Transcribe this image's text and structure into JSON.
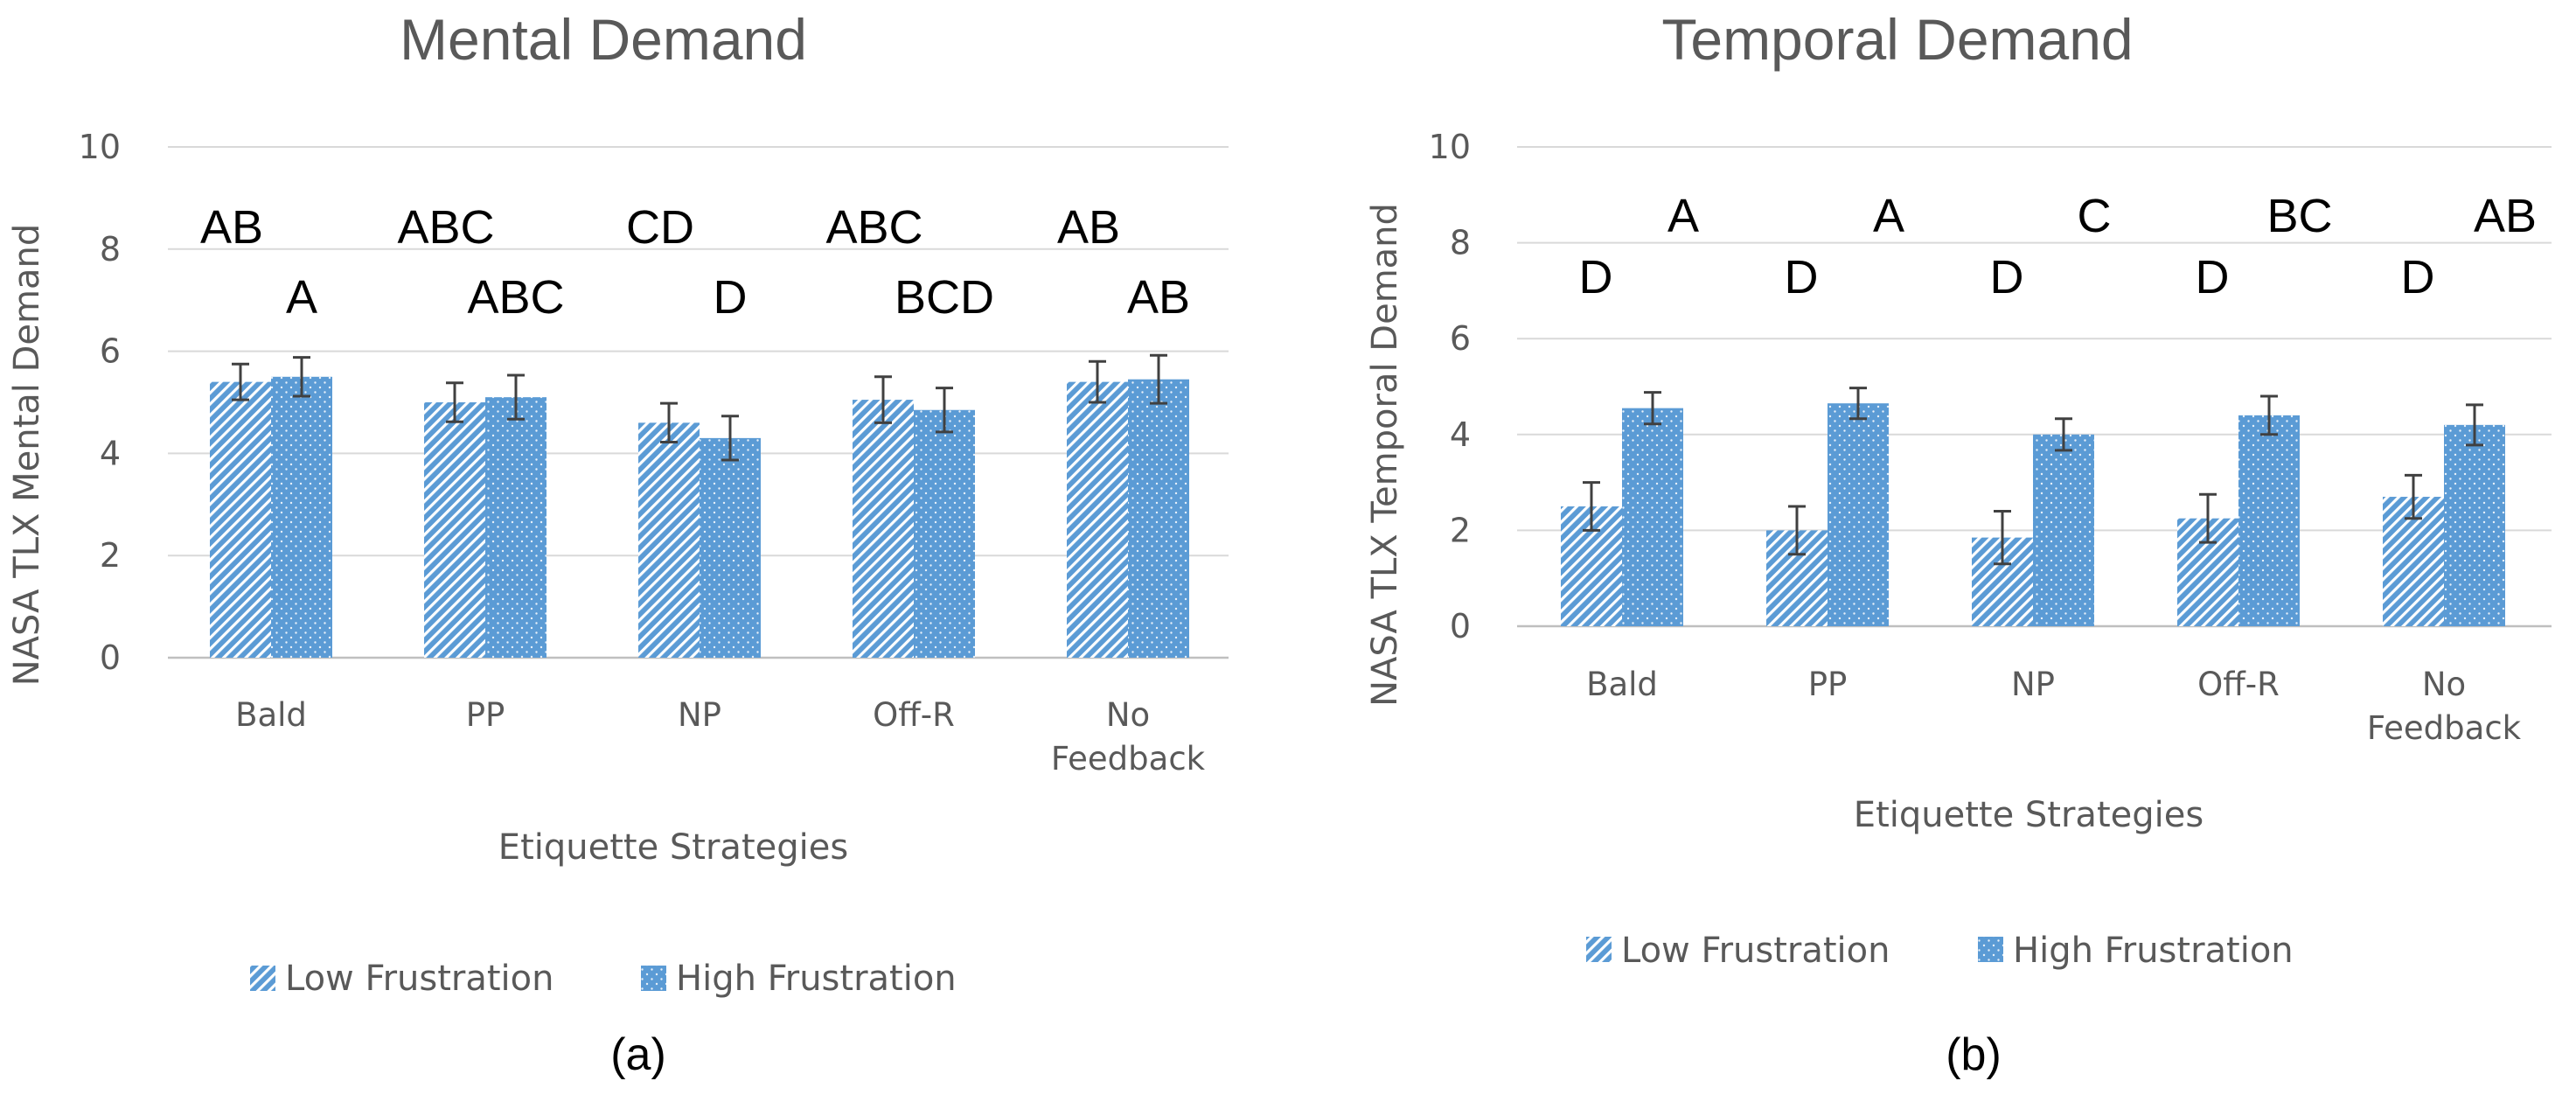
{
  "colors": {
    "bar": "#5b9bd5",
    "bar_light": "#9dc3e6",
    "text": "#595959",
    "grid": "#d9d9d9",
    "letters": "#000000"
  },
  "chart_data": [
    {
      "type": "bar",
      "title": "Mental Demand",
      "ylabel": "NASA TLX Mental Demand",
      "xlabel": "Etiquette Strategies",
      "ylim": [
        0,
        10
      ],
      "yticks": [
        "0",
        "2",
        "4",
        "6",
        "8",
        "10"
      ],
      "categories": [
        "Bald",
        "PP",
        "NP",
        "Off-R",
        "No Feedback"
      ],
      "category_lines": [
        [
          "Bald"
        ],
        [
          "PP"
        ],
        [
          "NP"
        ],
        [
          "Off-R"
        ],
        [
          "No",
          "Feedback"
        ]
      ],
      "legend_position": "bottom",
      "series": [
        {
          "name": "Low Frustration",
          "pattern": "diagonal-stripes",
          "values": [
            5.4,
            5.0,
            4.6,
            5.05,
            5.4
          ],
          "errors": [
            0.35,
            0.38,
            0.38,
            0.45,
            0.4
          ],
          "letters": [
            "AB",
            "ABC",
            "CD",
            "ABC",
            "AB"
          ]
        },
        {
          "name": "High Frustration",
          "pattern": "dots",
          "values": [
            5.5,
            5.1,
            4.3,
            4.85,
            5.45
          ],
          "errors": [
            0.38,
            0.43,
            0.43,
            0.43,
            0.47
          ],
          "letters": [
            "A",
            "ABC",
            "D",
            "BCD",
            "AB"
          ]
        }
      ],
      "caption": "(a)"
    },
    {
      "type": "bar",
      "title": "Temporal Demand",
      "ylabel": "NASA TLX Temporal Demand",
      "xlabel": "Etiquette Strategies",
      "ylim": [
        0,
        10
      ],
      "yticks": [
        "0",
        "2",
        "4",
        "6",
        "8",
        "10"
      ],
      "categories": [
        "Bald",
        "PP",
        "NP",
        "Off-R",
        "No Feedback"
      ],
      "category_lines": [
        [
          "Bald"
        ],
        [
          "PP"
        ],
        [
          "NP"
        ],
        [
          "Off-R"
        ],
        [
          "No",
          "Feedback"
        ]
      ],
      "legend_position": "bottom",
      "series": [
        {
          "name": "Low Frustration",
          "pattern": "diagonal-stripes",
          "values": [
            2.5,
            2.0,
            1.85,
            2.25,
            2.7
          ],
          "errors": [
            0.5,
            0.5,
            0.55,
            0.5,
            0.45
          ],
          "letters": [
            "D",
            "D",
            "D",
            "D",
            "D"
          ]
        },
        {
          "name": "High Frustration",
          "pattern": "dots",
          "values": [
            4.55,
            4.65,
            4.0,
            4.4,
            4.2
          ],
          "errors": [
            0.33,
            0.32,
            0.33,
            0.4,
            0.42
          ],
          "letters": [
            "A",
            "A",
            "C",
            "BC",
            "AB"
          ]
        }
      ],
      "caption": "(b)"
    }
  ]
}
